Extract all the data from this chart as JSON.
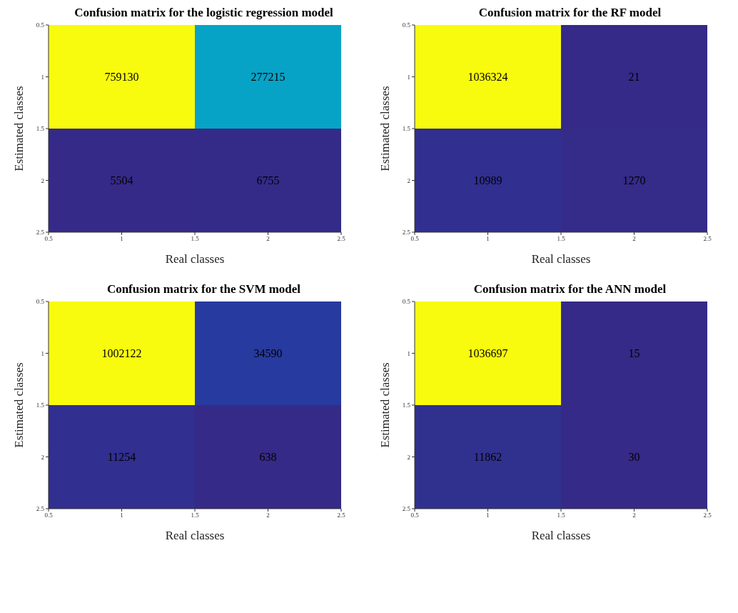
{
  "chart_data": [
    {
      "type": "heatmap",
      "title": "Confusion matrix for the logistic regression model",
      "xlabel": "Real classes",
      "ylabel": "Estimated classes",
      "cells": [
        [
          759130,
          277215
        ],
        [
          5504,
          6755
        ]
      ],
      "data_labels": true,
      "xlim": [
        0.5,
        2.5
      ],
      "xticks": [
        0.5,
        1,
        1.5,
        2,
        2.5
      ],
      "ylim": [
        2.5,
        0.5
      ],
      "yticks": [
        0.5,
        1,
        1.5,
        2,
        2.5
      ]
    },
    {
      "type": "heatmap",
      "title": "Confusion matrix for the RF model",
      "xlabel": "Real classes",
      "ylabel": "Estimated classes",
      "cells": [
        [
          1036324,
          21
        ],
        [
          10989,
          1270
        ]
      ],
      "data_labels": true,
      "xlim": [
        0.5,
        2.5
      ],
      "xticks": [
        0.5,
        1,
        1.5,
        2,
        2.5
      ],
      "ylim": [
        2.5,
        0.5
      ],
      "yticks": [
        0.5,
        1,
        1.5,
        2,
        2.5
      ]
    },
    {
      "type": "heatmap",
      "title": "Confusion matrix for the SVM model",
      "xlabel": "Real classes",
      "ylabel": "Estimated classes",
      "cells": [
        [
          1002122,
          34590
        ],
        [
          11254,
          638
        ]
      ],
      "data_labels": true,
      "xlim": [
        0.5,
        2.5
      ],
      "xticks": [
        0.5,
        1,
        1.5,
        2,
        2.5
      ],
      "ylim": [
        2.5,
        0.5
      ],
      "yticks": [
        0.5,
        1,
        1.5,
        2,
        2.5
      ]
    },
    {
      "type": "heatmap",
      "title": "Confusion matrix for the ANN model",
      "xlabel": "Real classes",
      "ylabel": "Estimated classes",
      "cells": [
        [
          1036697,
          15
        ],
        [
          11862,
          30
        ]
      ],
      "data_labels": true,
      "xlim": [
        0.5,
        2.5
      ],
      "xticks": [
        0.5,
        1,
        1.5,
        2,
        2.5
      ],
      "ylim": [
        2.5,
        0.5
      ],
      "yticks": [
        0.5,
        1,
        1.5,
        2,
        2.5
      ]
    }
  ]
}
